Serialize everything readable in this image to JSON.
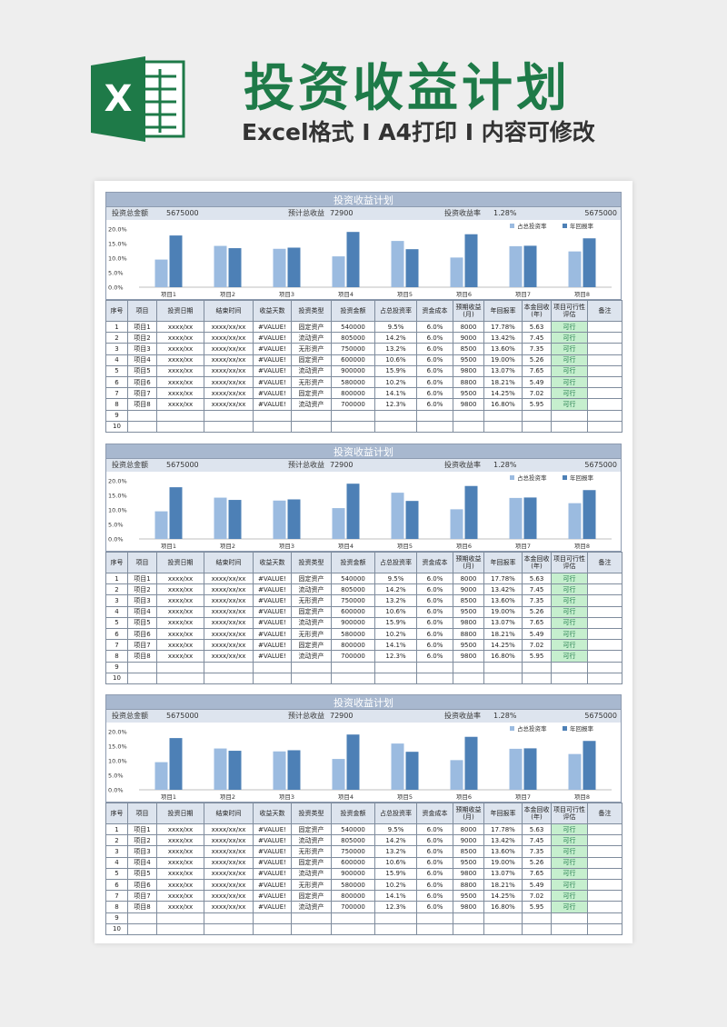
{
  "header": {
    "logo_letter": "X",
    "title": "投资收益计划",
    "subtitle": "Excel格式 I A4打印 I 内容可修改"
  },
  "colors": {
    "light_bar": "#9bbbe0",
    "dark_bar": "#4d80b6",
    "header_bg": "#a8b8cf",
    "ok_bg": "#c6efce",
    "title_green": "#1e7a48"
  },
  "sheet": {
    "title": "投资收益计划",
    "summary": {
      "total_label": "投资总金额",
      "total_value": "5675000",
      "expected_label": "预计总收益",
      "expected_value": "72900",
      "rate_label": "投资收益率",
      "rate_value": "1.28%",
      "right_value": "5675000"
    },
    "columns": [
      "序号",
      "项目",
      "投资日期",
      "结束时间",
      "收益天数",
      "投资类型",
      "投资金额",
      "占总投资率",
      "资金成本",
      "预期收益(月)",
      "年回报率",
      "本金回收(年)",
      "项目可行性评估",
      "备注"
    ],
    "rows": [
      [
        "1",
        "项目1",
        "xxxx/xx",
        "xxxx/xx/xx",
        "#VALUE!",
        "固定资产",
        "540000",
        "9.5%",
        "6.0%",
        "8000",
        "17.78%",
        "5.63",
        "可行",
        ""
      ],
      [
        "2",
        "项目2",
        "xxxx/xx",
        "xxxx/xx/xx",
        "#VALUE!",
        "流动资产",
        "805000",
        "14.2%",
        "6.0%",
        "9000",
        "13.42%",
        "7.45",
        "可行",
        ""
      ],
      [
        "3",
        "项目3",
        "xxxx/xx",
        "xxxx/xx/xx",
        "#VALUE!",
        "无形资产",
        "750000",
        "13.2%",
        "6.0%",
        "8500",
        "13.60%",
        "7.35",
        "可行",
        ""
      ],
      [
        "4",
        "项目4",
        "xxxx/xx",
        "xxxx/xx/xx",
        "#VALUE!",
        "固定资产",
        "600000",
        "10.6%",
        "6.0%",
        "9500",
        "19.00%",
        "5.26",
        "可行",
        ""
      ],
      [
        "5",
        "项目5",
        "xxxx/xx",
        "xxxx/xx/xx",
        "#VALUE!",
        "流动资产",
        "900000",
        "15.9%",
        "6.0%",
        "9800",
        "13.07%",
        "7.65",
        "可行",
        ""
      ],
      [
        "6",
        "项目6",
        "xxxx/xx",
        "xxxx/xx/xx",
        "#VALUE!",
        "无形资产",
        "580000",
        "10.2%",
        "6.0%",
        "8800",
        "18.21%",
        "5.49",
        "可行",
        ""
      ],
      [
        "7",
        "项目7",
        "xxxx/xx",
        "xxxx/xx/xx",
        "#VALUE!",
        "固定资产",
        "800000",
        "14.1%",
        "6.0%",
        "9500",
        "14.25%",
        "7.02",
        "可行",
        ""
      ],
      [
        "8",
        "项目8",
        "xxxx/xx",
        "xxxx/xx/xx",
        "#VALUE!",
        "流动资产",
        "700000",
        "12.3%",
        "6.0%",
        "9800",
        "16.80%",
        "5.95",
        "可行",
        ""
      ],
      [
        "9",
        "",
        "",
        "",
        "",
        "",
        "",
        "",
        "",
        "",
        "",
        "",
        "",
        ""
      ],
      [
        "10",
        "",
        "",
        "",
        "",
        "",
        "",
        "",
        "",
        "",
        "",
        "",
        "",
        ""
      ]
    ]
  },
  "chart_data": {
    "type": "bar",
    "categories": [
      "项目1",
      "项目2",
      "项目3",
      "项目4",
      "项目5",
      "项目6",
      "项目7",
      "项目8"
    ],
    "series": [
      {
        "name": "占总投资率",
        "values": [
          9.5,
          14.2,
          13.2,
          10.6,
          15.9,
          10.2,
          14.1,
          12.3
        ]
      },
      {
        "name": "年回报率",
        "values": [
          17.78,
          13.42,
          13.6,
          19.0,
          13.07,
          18.21,
          14.25,
          16.8
        ]
      }
    ],
    "yticks": [
      "20.0%",
      "15.0%",
      "10.0%",
      "5.0%",
      "0.0%"
    ],
    "ylim": [
      0,
      20
    ],
    "legend": "top-right",
    "grid": false
  }
}
